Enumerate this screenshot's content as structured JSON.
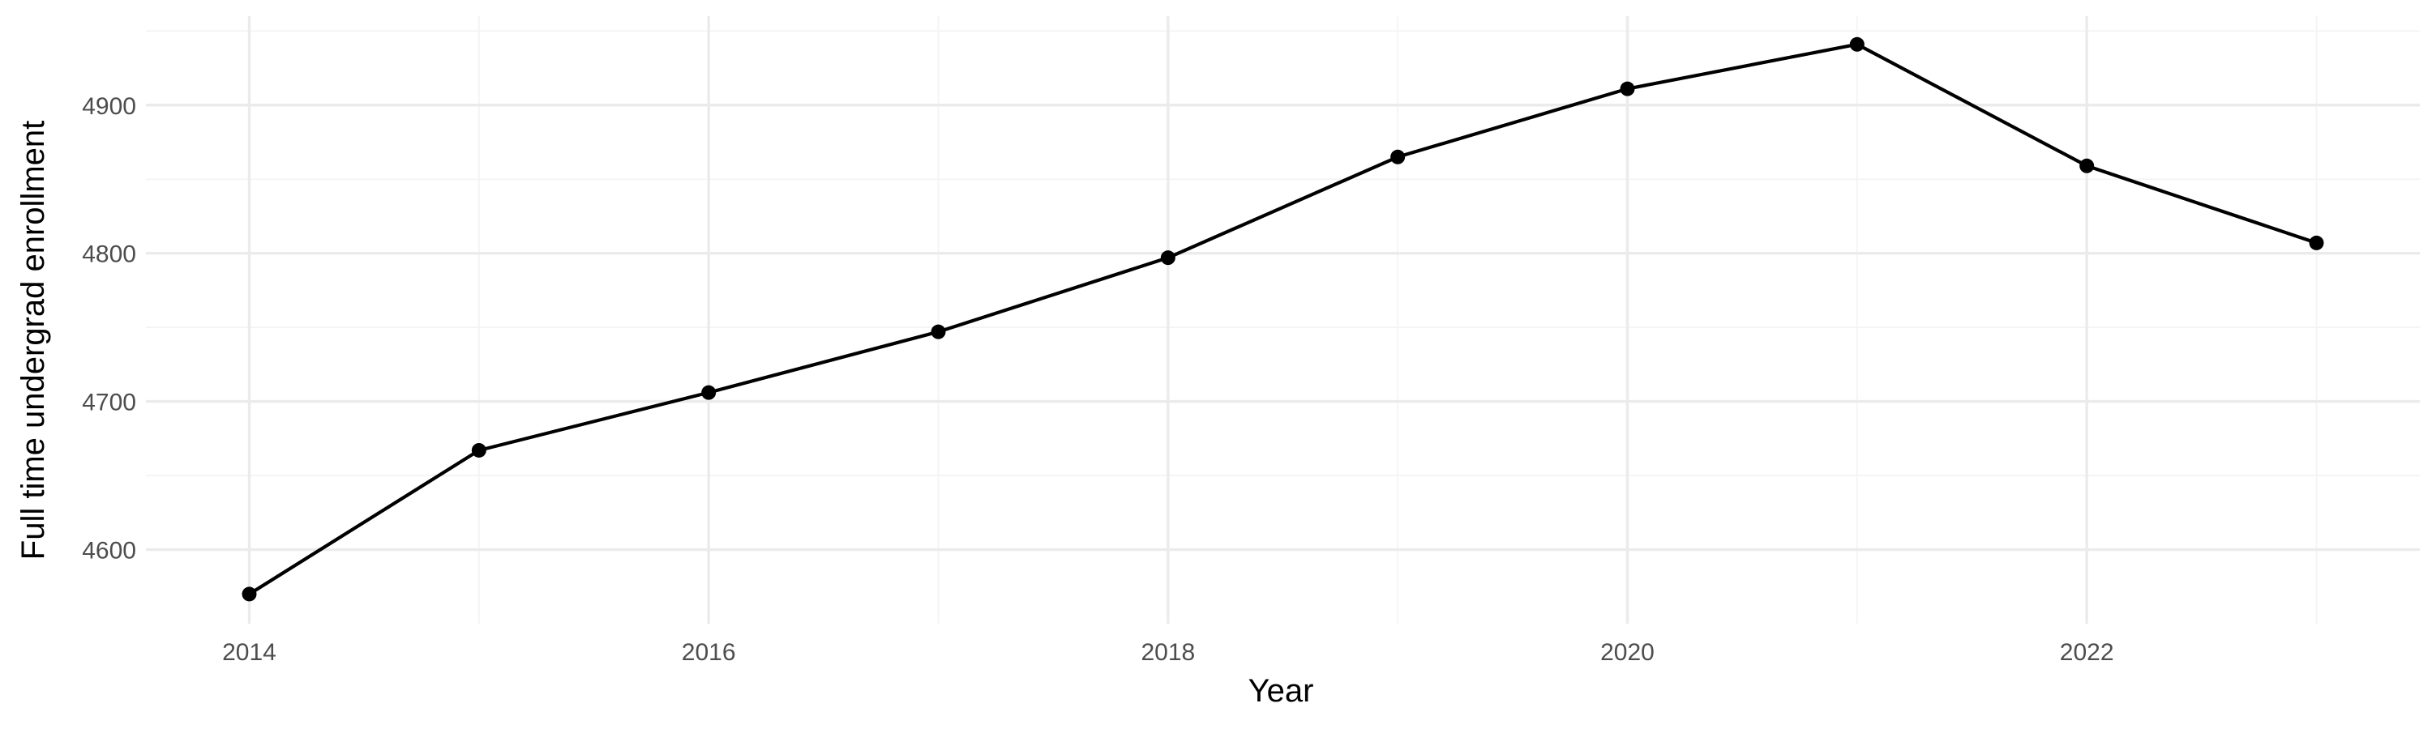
{
  "chart_data": {
    "type": "line",
    "title": "",
    "xlabel": "Year",
    "ylabel": "Full time undergrad enrollment",
    "x": [
      2014,
      2015,
      2016,
      2017,
      2018,
      2019,
      2020,
      2021,
      2022,
      2023
    ],
    "series": [
      {
        "values": [
          4570,
          4667,
          4706,
          4747,
          4797,
          4865,
          4911,
          4941,
          4859,
          4807
        ]
      }
    ],
    "xlim": [
      2013.55,
      2023.45
    ],
    "ylim": [
      4550,
      4960
    ],
    "x_major_ticks": [
      2014,
      2016,
      2018,
      2020,
      2022
    ],
    "x_minor_ticks": [
      2015,
      2017,
      2019,
      2021,
      2023
    ],
    "y_major_ticks": [
      4600,
      4700,
      4800,
      4900
    ],
    "y_minor_ticks": [
      4650,
      4750,
      4850,
      4950
    ],
    "x_tick_labels": [
      "2014",
      "2016",
      "2018",
      "2020",
      "2022"
    ],
    "y_tick_labels": [
      "4600",
      "4700",
      "4800",
      "4900"
    ],
    "grid": true,
    "legend": "none",
    "line_color": "#000000",
    "point_color": "#000000",
    "major_grid_color": "#ebebeb",
    "minor_grid_color": "#f4f4f4"
  }
}
